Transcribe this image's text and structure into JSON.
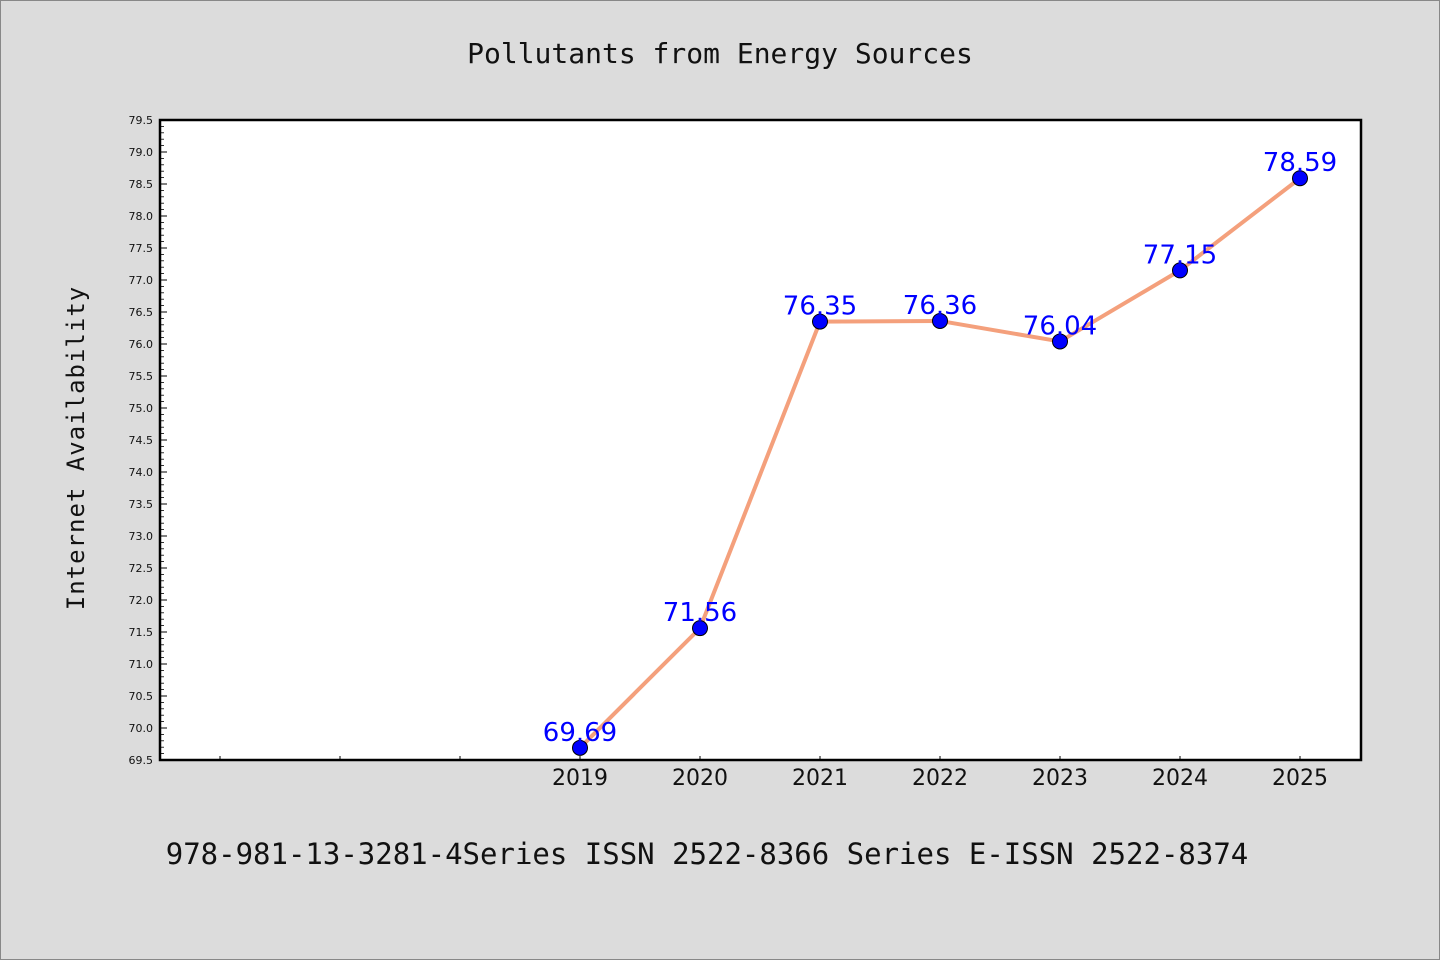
{
  "chart_data": {
    "type": "line",
    "title": "Pollutants from Energy Sources",
    "xlabel": "",
    "ylabel": "Internet Availability",
    "categories": [
      "2019",
      "2020",
      "2021",
      "2022",
      "2023",
      "2024",
      "2025"
    ],
    "series": [
      {
        "values": [
          69.69,
          71.56,
          76.35,
          76.36,
          76.04,
          77.15,
          78.59
        ],
        "data_labels": [
          "69.69",
          "71.56",
          "76.35",
          "76.36",
          "76.04",
          "77.15",
          "78.59"
        ]
      }
    ],
    "ylim": [
      69.5,
      79.5
    ],
    "y_ticks": [
      "69.5",
      "70.0",
      "70.5",
      "71.0",
      "71.5",
      "72.0",
      "72.5",
      "73.0",
      "73.5",
      "74.0",
      "74.5",
      "75.0",
      "75.5",
      "76.0",
      "76.5",
      "77.0",
      "77.5",
      "78.0",
      "78.5",
      "79.0",
      "79.5"
    ],
    "grid": false,
    "line_color": "#f4a07c",
    "marker_color": "#0000ff",
    "label_color": "#0000ff"
  },
  "footer": {
    "text": "978-981-13-3281-4Series ISSN 2522-8366 Series E-ISSN 2522-8374"
  }
}
